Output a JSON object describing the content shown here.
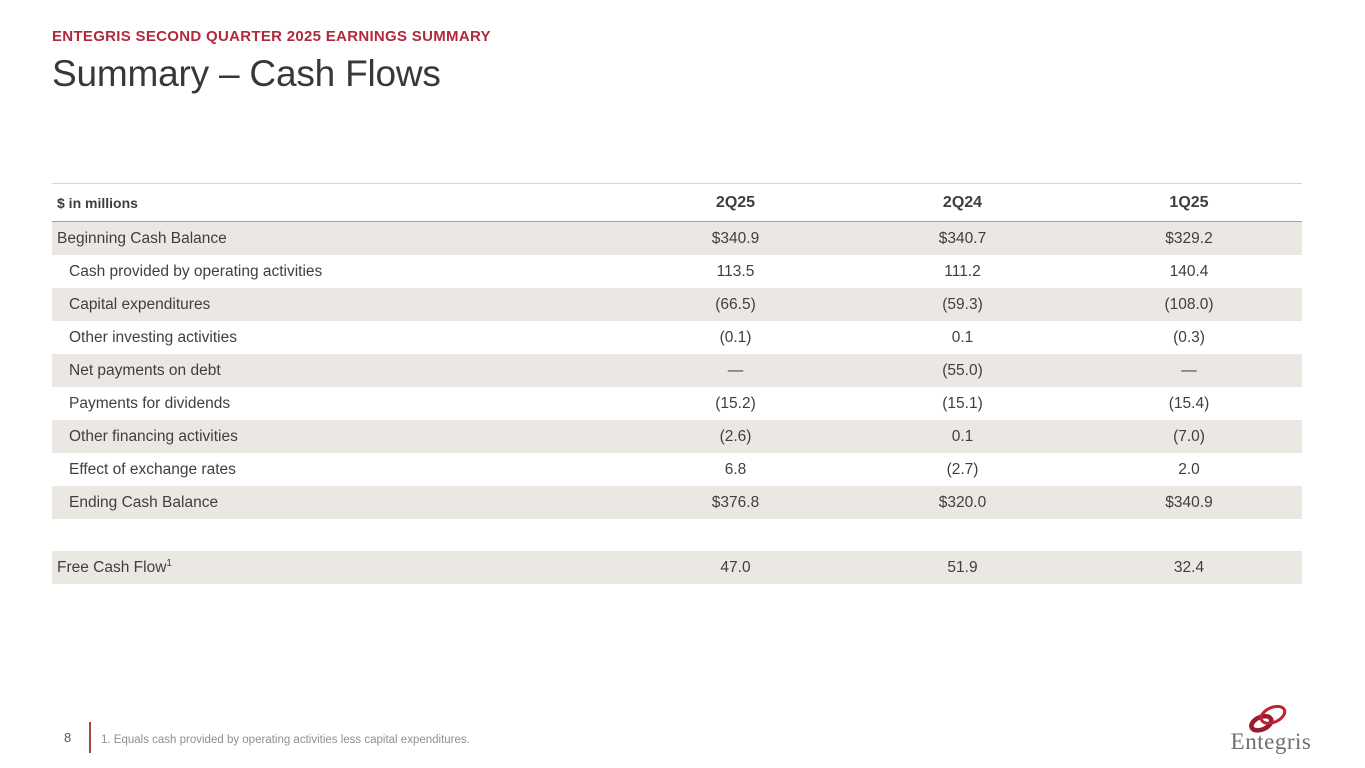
{
  "slide": {
    "eyebrow": "ENTEGRIS SECOND QUARTER 2025 EARNINGS SUMMARY",
    "title": "Summary – Cash Flows"
  },
  "table": {
    "unit_label": "$ in millions",
    "columns": [
      "2Q25",
      "2Q24",
      "1Q25"
    ],
    "rows": [
      {
        "label": "Beginning Cash Balance",
        "indent": false,
        "shaded": true,
        "values": [
          "$340.9",
          "$340.7",
          "$329.2"
        ]
      },
      {
        "label": "Cash provided by operating activities",
        "indent": true,
        "shaded": false,
        "values": [
          "113.5",
          "111.2",
          "140.4"
        ]
      },
      {
        "label": "Capital expenditures",
        "indent": true,
        "shaded": true,
        "values": [
          "(66.5)",
          "(59.3)",
          "(108.0)"
        ]
      },
      {
        "label": "Other investing activities",
        "indent": true,
        "shaded": false,
        "values": [
          "(0.1)",
          "0.1",
          "(0.3)"
        ]
      },
      {
        "label": "Net payments on debt",
        "indent": true,
        "shaded": true,
        "values": [
          "—",
          "(55.0)",
          "—"
        ]
      },
      {
        "label": "Payments for dividends",
        "indent": true,
        "shaded": false,
        "values": [
          "(15.2)",
          "(15.1)",
          "(15.4)"
        ]
      },
      {
        "label": "Other financing activities",
        "indent": true,
        "shaded": true,
        "values": [
          "(2.6)",
          "0.1",
          "(7.0)"
        ]
      },
      {
        "label": "Effect of exchange rates",
        "indent": true,
        "shaded": false,
        "values": [
          "6.8",
          "(2.7)",
          "2.0"
        ]
      },
      {
        "label": "Ending Cash Balance",
        "indent": true,
        "shaded": true,
        "values": [
          "$376.8",
          "$320.0",
          "$340.9"
        ]
      }
    ],
    "summary_row": {
      "label": "Free Cash Flow",
      "superscript": "1",
      "shaded": true,
      "values": [
        "47.0",
        "51.9",
        "32.4"
      ]
    }
  },
  "footer": {
    "page_number": "8",
    "footnote": "1. Equals cash provided by operating activities less capital expenditures."
  },
  "logo": {
    "wordmark": "Entegris"
  },
  "colors": {
    "accent_red": "#B02A3C",
    "row_shade": "#EBE8E3",
    "footnote_rule": "#A8443E",
    "logo_ring_dark": "#9B1B2E",
    "logo_ring_light": "#C22035"
  }
}
